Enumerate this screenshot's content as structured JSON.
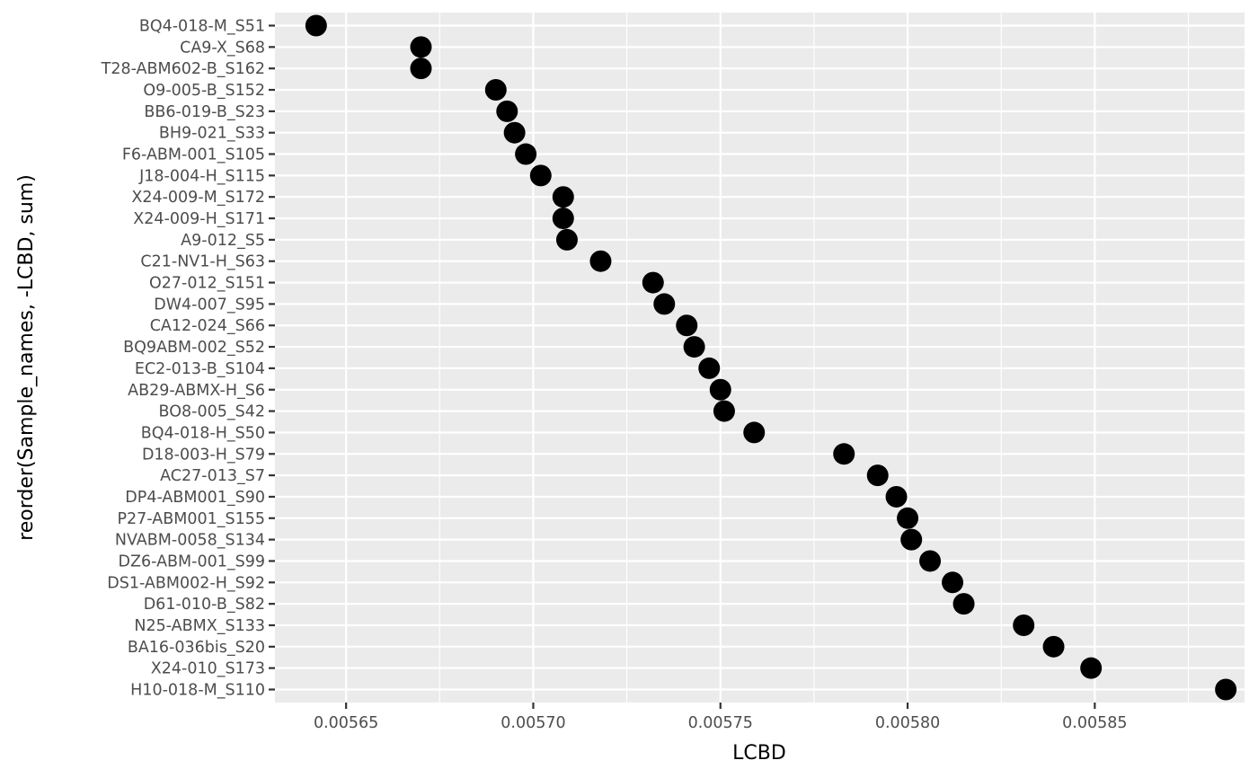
{
  "chart_data": {
    "type": "scatter",
    "title": "",
    "xlabel": "LCBD",
    "ylabel": "reorder(Sample_names, -LCBD, sum)",
    "xlim": [
      0.005631,
      0.00589
    ],
    "x_ticks": [
      0.00565,
      0.0057,
      0.00575,
      0.0058,
      0.00585
    ],
    "x_tick_labels": [
      "0.00565",
      "0.00570",
      "0.00575",
      "0.00580",
      "0.00585"
    ],
    "grid": true,
    "legend": "none",
    "point_color": "#000000",
    "categories": [
      "BQ4-018-M_S51",
      "CA9-X_S68",
      "T28-ABM602-B_S162",
      "O9-005-B_S152",
      "BB6-019-B_S23",
      "BH9-021_S33",
      "F6-ABM-001_S105",
      "J18-004-H_S115",
      "X24-009-M_S172",
      "X24-009-H_S171",
      "A9-012_S5",
      "C21-NV1-H_S63",
      "O27-012_S151",
      "DW4-007_S95",
      "CA12-024_S66",
      "BQ9ABM-002_S52",
      "EC2-013-B_S104",
      "AB29-ABMX-H_S6",
      "BO8-005_S42",
      "BQ4-018-H_S50",
      "D18-003-H_S79",
      "AC27-013_S7",
      "DP4-ABM001_S90",
      "P27-ABM001_S155",
      "NVABM-0058_S134",
      "DZ6-ABM-001_S99",
      "DS1-ABM002-H_S92",
      "D61-010-B_S82",
      "N25-ABMX_S133",
      "BA16-036bis_S20",
      "X24-010_S173",
      "H10-018-M_S110"
    ],
    "values": [
      0.005642,
      0.00567,
      0.00567,
      0.00569,
      0.005693,
      0.005695,
      0.005698,
      0.005702,
      0.005708,
      0.005708,
      0.005709,
      0.005718,
      0.005732,
      0.005735,
      0.005741,
      0.005743,
      0.005747,
      0.00575,
      0.005751,
      0.005759,
      0.005783,
      0.005792,
      0.005797,
      0.0058,
      0.005801,
      0.005806,
      0.005812,
      0.005815,
      0.005831,
      0.005839,
      0.005849,
      0.005885
    ]
  }
}
